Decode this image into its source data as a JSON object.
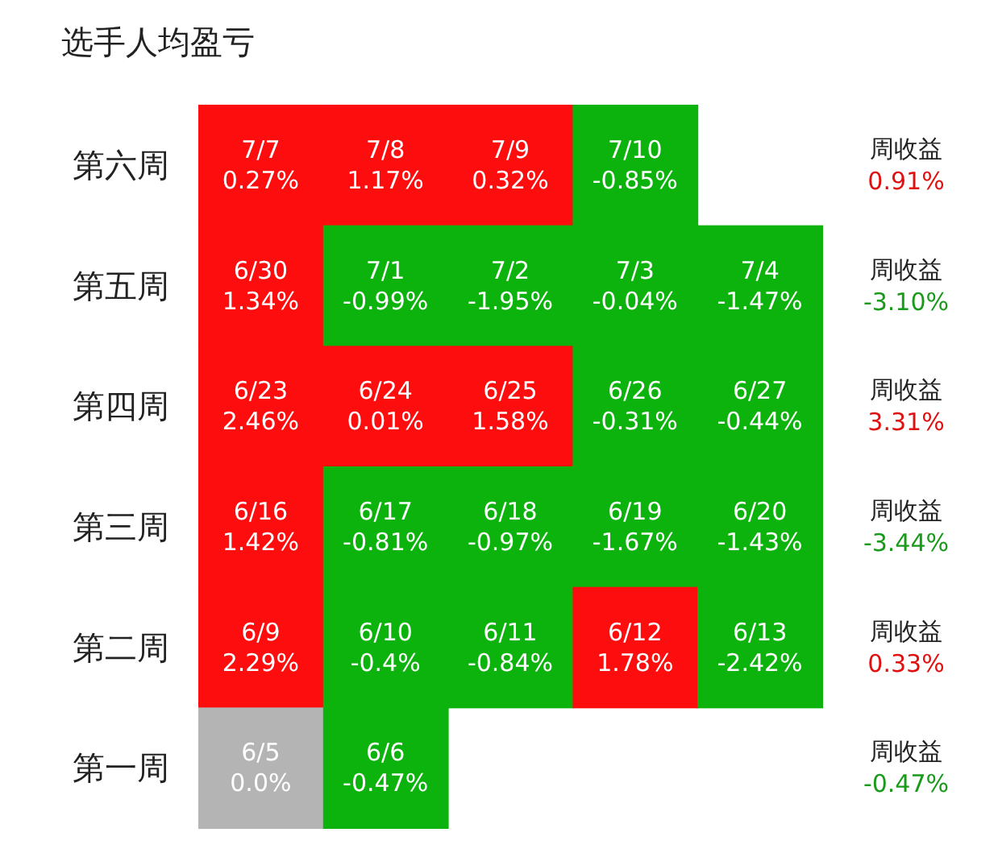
{
  "chart_data": {
    "type": "heatmap",
    "title": "选手人均盈亏",
    "categories": [
      null,
      null,
      null,
      null,
      null
    ],
    "y_categories": [
      "第六周",
      "第五周",
      "第四周",
      "第三周",
      "第二周",
      "第一周"
    ],
    "y2_categories": [
      "周收益\n0.91%",
      "周收益\n-3.10%",
      "周收益\n3.31%",
      "周收益\n-3.44%",
      "周收益\n0.33%",
      "周收益\n-0.47%"
    ],
    "colors": [
      "#fd0d0d",
      "#0cb30c",
      "#b4b4b4"
    ],
    "cells": [
      [
        0.27,
        1.17,
        0.32,
        -0.85,
        null
      ],
      [
        1.34,
        -0.99,
        -1.95,
        -0.04,
        -1.47
      ],
      [
        2.46,
        0.01,
        1.58,
        -0.31,
        -0.44
      ],
      [
        1.42,
        -0.81,
        -0.97,
        -1.67,
        -1.43
      ],
      [
        2.29,
        -0.4,
        -0.84,
        1.78,
        -2.42
      ],
      [
        0.0,
        -0.47,
        null,
        null,
        null
      ]
    ],
    "cell_labels": [
      [
        "0.27%",
        "1.17%",
        "0.32%",
        "-0.85%",
        null
      ],
      [
        "1.34%",
        "-0.99%",
        "-1.95%",
        "-0.04%",
        "-1.47%"
      ],
      [
        "2.46%",
        "0.01%",
        "1.58%",
        "-0.31%",
        "-0.44%"
      ],
      [
        "1.42%",
        "-0.81%",
        "-0.97%",
        "-1.67%",
        "-1.43%"
      ],
      [
        "2.29%",
        "-0.4%",
        "-0.84%",
        "1.78%",
        "-2.42%"
      ],
      [
        "0.0%",
        "-0.47%",
        null,
        null,
        null
      ]
    ],
    "annotations": [
      "7/7",
      "7/8",
      "7/9",
      "7/10",
      "6/30",
      "7/1",
      "7/2",
      "7/3",
      "7/4",
      "6/23",
      "6/24",
      "6/25",
      "6/26",
      "6/27",
      "6/16",
      "6/17",
      "6/18",
      "6/19",
      "6/20",
      "6/9",
      "6/10",
      "6/11",
      "6/12",
      "6/13",
      "6/5",
      "6/6"
    ]
  }
}
